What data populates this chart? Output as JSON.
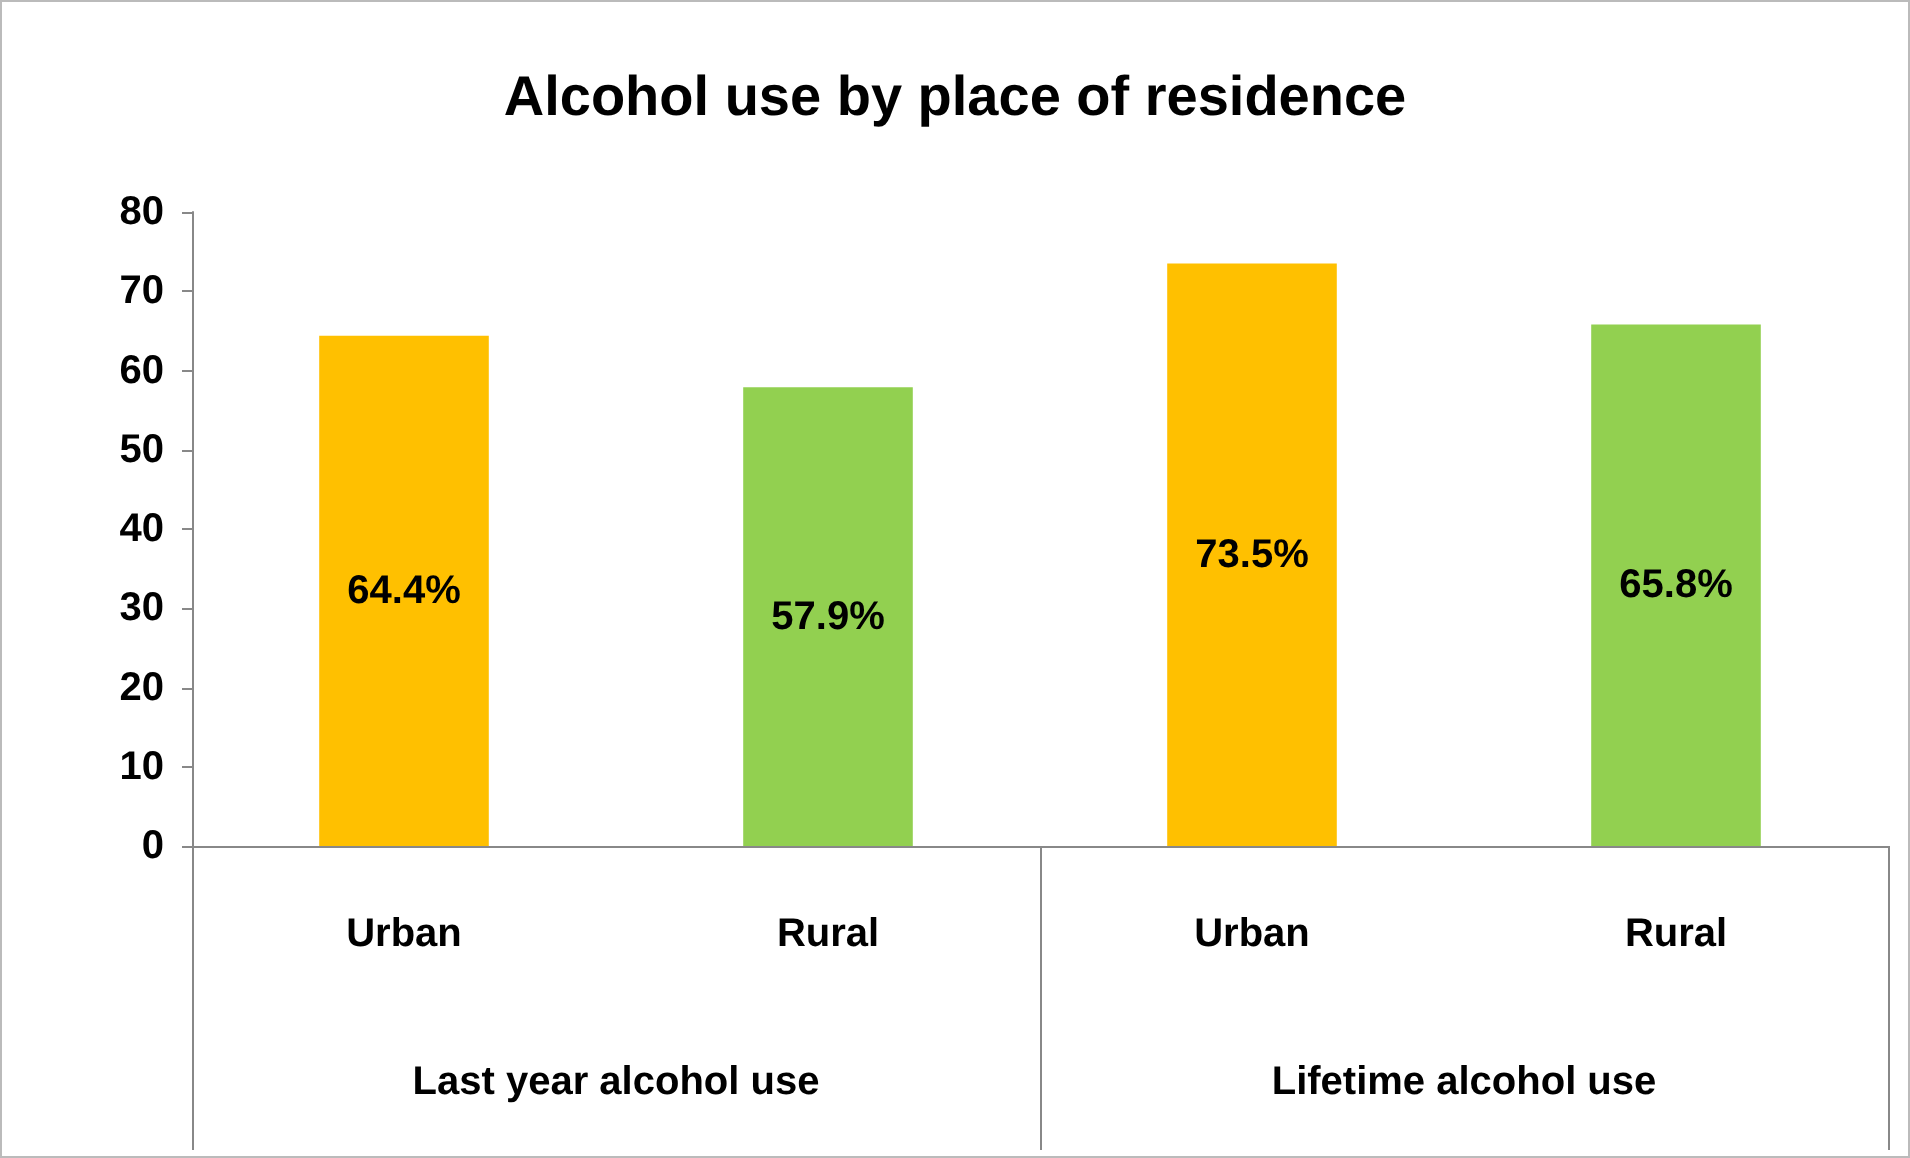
{
  "chart_data": {
    "type": "bar",
    "title": "Alcohol use by place of residence",
    "categories": [
      "Urban",
      "Rural",
      "Urban",
      "Rural"
    ],
    "values": [
      64.4,
      57.9,
      73.5,
      65.8
    ],
    "colors": [
      "#ffc000",
      "#92d050",
      "#ffc000",
      "#92d050"
    ],
    "value_labels": [
      "64.4%",
      "57.9%",
      "73.5%",
      "65.8%"
    ],
    "ylim": [
      0,
      80
    ],
    "yticks": [
      0,
      10,
      20,
      30,
      40,
      50,
      60,
      70,
      80
    ],
    "annotations": [
      "Last year alcohol use",
      "Lifetime alcohol use"
    ],
    "grid": false
  }
}
